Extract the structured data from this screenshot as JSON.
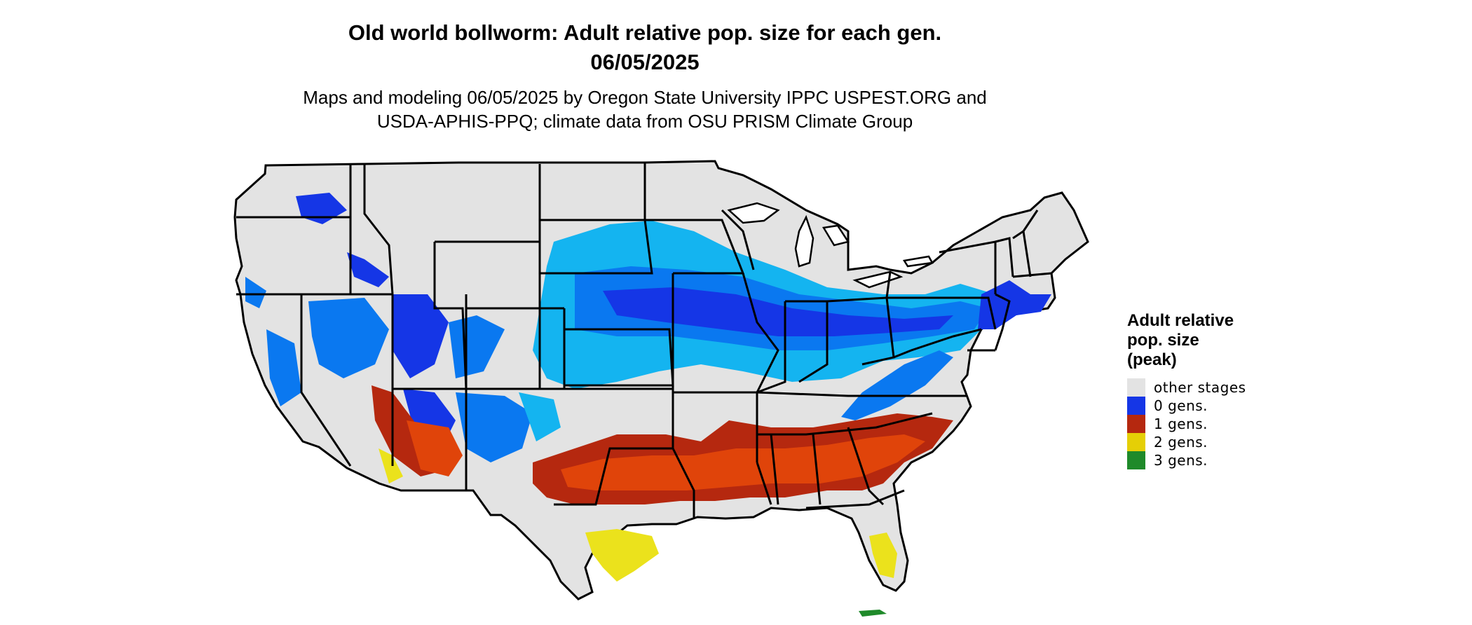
{
  "header": {
    "title_line1": "Old world bollworm: Adult relative pop. size for each gen.",
    "title_line2": "06/05/2025",
    "subtitle_line1": "Maps and modeling 06/05/2025 by Oregon State University IPPC USPEST.ORG and",
    "subtitle_line2": "USDA-APHIS-PPQ; climate data from OSU PRISM Climate Group"
  },
  "legend": {
    "title_line1": "Adult relative",
    "title_line2": "pop. size",
    "title_line3": "(peak)",
    "items": [
      {
        "label": "other stages",
        "color": "#e3e3e3"
      },
      {
        "label": "0 gens.",
        "color": "#1536e6"
      },
      {
        "label": "1 gens.",
        "color": "#b5280f"
      },
      {
        "label": "2 gens.",
        "color": "#e5cf06"
      },
      {
        "label": "3 gens.",
        "color": "#1f8a2a"
      }
    ]
  },
  "colors": {
    "background": "#e3e3e3",
    "border": "#000000",
    "light_blue": "#14b4f0",
    "mid_blue": "#0a78f0",
    "dark_blue": "#1536e6",
    "red": "#b5280f",
    "orange_red": "#e0440a",
    "yellow": "#ebe21c",
    "green": "#1f8a2a"
  }
}
